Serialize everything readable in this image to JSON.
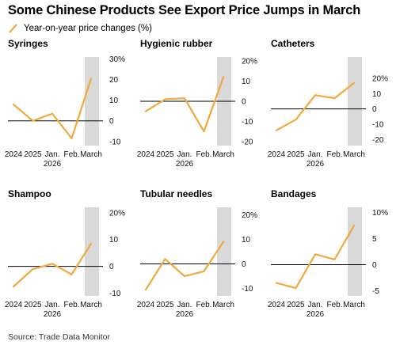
{
  "title": "Some Chinese Products See Export Price Jumps in March",
  "legend": {
    "label": "Year-on-year price changes (%)"
  },
  "source": "Source: Trade Data Monitor",
  "colors": {
    "line": "#f2a93b",
    "shade": "#d9d9d9",
    "zero": "#000000"
  },
  "chart_data": [
    {
      "type": "line",
      "title": "Syringes",
      "categories": [
        "2024",
        "2025",
        "Jan. 2026",
        "Feb.",
        "March"
      ],
      "x_tick_labels": [
        [
          "2024"
        ],
        [
          "2025"
        ],
        [
          "Jan.",
          "2026"
        ],
        [
          "Feb."
        ],
        [
          "March"
        ]
      ],
      "values": [
        8,
        0,
        3.5,
        -8.5,
        20.5
      ],
      "ylim": [
        -12,
        31
      ],
      "y_ticks": [
        -10,
        0,
        10,
        20,
        30
      ],
      "y_tick_labels": [
        "-10",
        "0",
        "10",
        "20",
        "30%"
      ],
      "shaded_category": "March"
    },
    {
      "type": "line",
      "title": "Hygienic rubber",
      "categories": [
        "2024",
        "2025",
        "Jan. 2026",
        "Feb.",
        "March"
      ],
      "x_tick_labels": [
        [
          "2024"
        ],
        [
          "2025"
        ],
        [
          "Jan.",
          "2026"
        ],
        [
          "Feb."
        ],
        [
          "March"
        ]
      ],
      "values": [
        -5,
        1,
        1.5,
        -15,
        12
      ],
      "ylim": [
        -22,
        22
      ],
      "y_ticks": [
        -20,
        -10,
        0,
        10,
        20
      ],
      "y_tick_labels": [
        "-20",
        "-10",
        "0",
        "10",
        "20%"
      ],
      "shaded_category": "March"
    },
    {
      "type": "line",
      "title": "Catheters",
      "categories": [
        "2024",
        "2025",
        "Jan. 2026",
        "Feb.",
        "March"
      ],
      "x_tick_labels": [
        [
          "2024"
        ],
        [
          "2025"
        ],
        [
          "Jan.",
          "2026"
        ],
        [
          "Feb."
        ],
        [
          "March"
        ]
      ],
      "values": [
        -14,
        -7,
        9,
        7,
        17
      ],
      "ylim": [
        -24,
        34
      ],
      "y_ticks": [
        -20,
        -10,
        0,
        10,
        20
      ],
      "y_tick_labels": [
        "-20",
        "-10",
        "0",
        "10",
        "20%"
      ],
      "shaded_category": "March"
    },
    {
      "type": "line",
      "title": "Shampoo",
      "categories": [
        "2024",
        "2025",
        "Jan. 2026",
        "Feb.",
        "March"
      ],
      "x_tick_labels": [
        [
          "2024"
        ],
        [
          "2025"
        ],
        [
          "Jan.",
          "2026"
        ],
        [
          "Feb."
        ],
        [
          "March"
        ]
      ],
      "values": [
        -7.5,
        -1,
        1,
        -3,
        8.5
      ],
      "ylim": [
        -11,
        22
      ],
      "y_ticks": [
        -10,
        0,
        10,
        20
      ],
      "y_tick_labels": [
        "-10",
        "0",
        "10",
        "20%"
      ],
      "shaded_category": "March"
    },
    {
      "type": "line",
      "title": "Tubular needles",
      "categories": [
        "2024",
        "2025",
        "Jan. 2026",
        "Feb.",
        "March"
      ],
      "x_tick_labels": [
        [
          "2024"
        ],
        [
          "2025"
        ],
        [
          "Jan.",
          "2026"
        ],
        [
          "Feb."
        ],
        [
          "March"
        ]
      ],
      "values": [
        -10.5,
        2,
        -5,
        -3,
        9
      ],
      "ylim": [
        -13,
        23
      ],
      "y_ticks": [
        -10,
        0,
        10,
        20
      ],
      "y_tick_labels": [
        "-10",
        "0",
        "10",
        "20%"
      ],
      "shaded_category": "March"
    },
    {
      "type": "line",
      "title": "Bandages",
      "categories": [
        "2024",
        "2025",
        "Jan. 2026",
        "Feb.",
        "March"
      ],
      "x_tick_labels": [
        [
          "2024"
        ],
        [
          "2025"
        ],
        [
          "Jan.",
          "2026"
        ],
        [
          "Feb."
        ],
        [
          "March"
        ]
      ],
      "values": [
        -3.5,
        -4.5,
        2,
        1,
        7.5
      ],
      "ylim": [
        -6,
        11
      ],
      "y_ticks": [
        -5,
        0,
        5,
        10
      ],
      "y_tick_labels": [
        "-5",
        "0",
        "5",
        "10%"
      ],
      "shaded_category": "March"
    }
  ]
}
